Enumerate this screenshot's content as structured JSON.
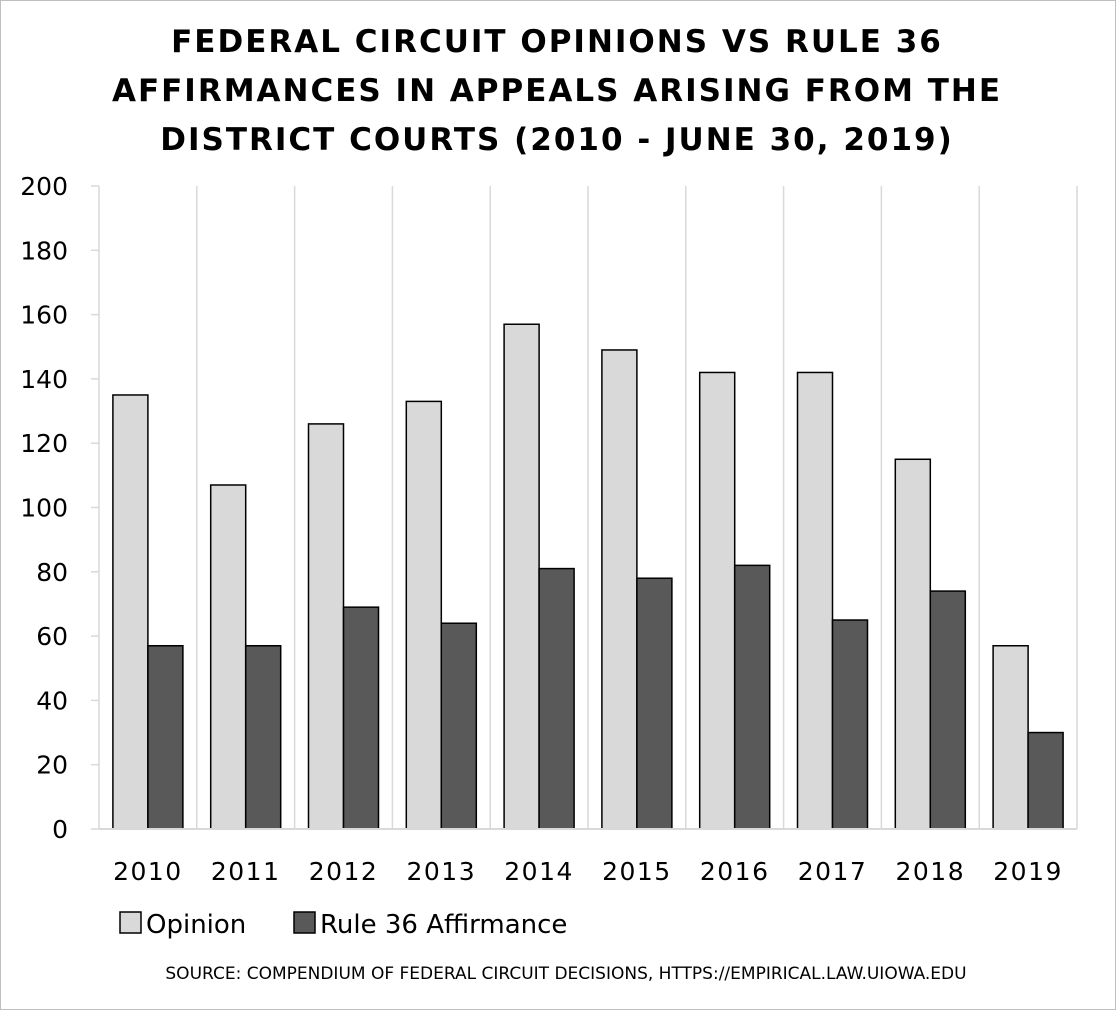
{
  "chart_data": {
    "type": "bar",
    "title_lines": [
      "FEDERAL CIRCUIT OPINIONS VS RULE 36",
      "AFFIRMANCES IN APPEALS ARISING FROM THE",
      "DISTRICT COURTS (2010 - JUNE 30, 2019)"
    ],
    "categories": [
      "2010",
      "2011",
      "2012",
      "2013",
      "2014",
      "2015",
      "2016",
      "2017",
      "2018",
      "2019"
    ],
    "series": [
      {
        "name": "Opinion",
        "color": "#d9d9d9",
        "values": [
          135,
          107,
          126,
          133,
          157,
          149,
          142,
          142,
          115,
          57
        ]
      },
      {
        "name": "Rule 36 Affirmance",
        "color": "#595959",
        "values": [
          57,
          57,
          69,
          64,
          81,
          78,
          82,
          65,
          74,
          30
        ]
      }
    ],
    "ylim": [
      0,
      200
    ],
    "yticks": [
      "0",
      "20",
      "40",
      "60",
      "80",
      "100",
      "120",
      "140",
      "160",
      "180",
      "200"
    ],
    "grid": "vertical",
    "legend_position": "bottom-left",
    "xlabel": "",
    "ylabel": "",
    "source": "SOURCE: COMPENDIUM OF FEDERAL CIRCUIT DECISIONS, HTTPS://EMPIRICAL.LAW.UIOWA.EDU"
  }
}
